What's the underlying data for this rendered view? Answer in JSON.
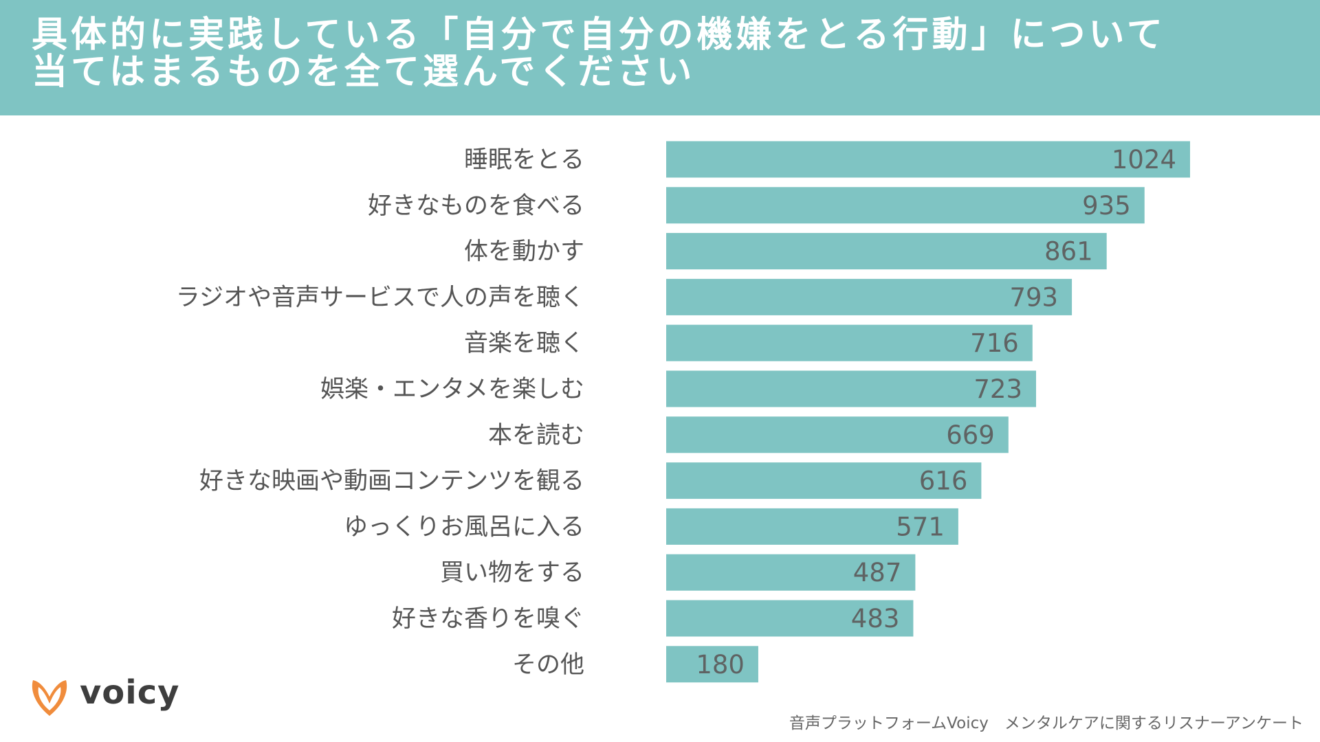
{
  "header": {
    "title_line1": "具体的に実践している「自分で自分の機嫌をとる行動」について",
    "title_line2": "当てはまるものを全て選んでください"
  },
  "chart_data": {
    "type": "bar",
    "orientation": "horizontal",
    "title": "具体的に実践している「自分で自分の機嫌をとる行動」について当てはまるものを全て選んでください",
    "categories": [
      "睡眠をとる",
      "好きなものを食べる",
      "体を動かす",
      "ラジオや音声サービスで人の声を聴く",
      "音楽を聴く",
      "娯楽・エンタメを楽しむ",
      "本を読む",
      "好きな映画や動画コンテンツを観る",
      "ゆっくりお風呂に入る",
      "買い物をする",
      "好きな香りを嗅ぐ",
      "その他"
    ],
    "values": [
      1024,
      935,
      861,
      793,
      716,
      723,
      669,
      616,
      571,
      487,
      483,
      180
    ],
    "xlim": [
      0,
      1024
    ],
    "grid": false,
    "bar_color": "#7fc4c3"
  },
  "brand": {
    "logo_text": "voicy",
    "logo_color": "#f08c3c"
  },
  "footer": {
    "source": "音声プラットフォームVoicy　メンタルケアに関するリスナーアンケート"
  }
}
